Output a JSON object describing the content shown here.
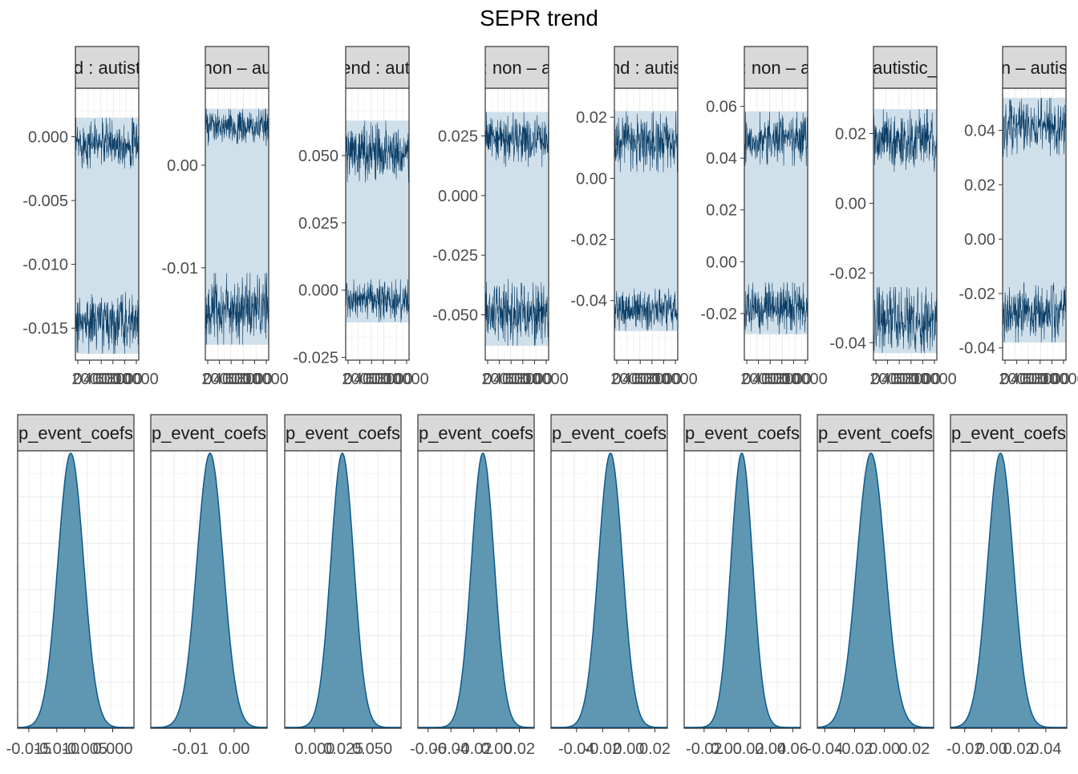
{
  "title": "SEPR trend",
  "colors": {
    "trace_line": "#0a3d66",
    "trace_band": "#d0e0eb",
    "density_fill": "#5f97b3",
    "density_line": "#0d5a8c",
    "strip_fill": "#d9d9d9",
    "grid": "#ebebeb",
    "axis_text": "#4d4d4d"
  },
  "chart_data": [
    {
      "type": "line",
      "role": "trace",
      "strip_label": "d : autist",
      "x_tick_labels": [
        "0",
        "2000",
        "4000",
        "6000",
        "8000",
        "10000"
      ],
      "xlim": [
        0,
        10000
      ],
      "y_ticks": [
        -0.015,
        -0.01,
        -0.005,
        0.0
      ],
      "y_tick_labels": [
        "-0.015",
        "-0.010",
        "-0.005",
        "0.000"
      ],
      "ylim": [
        -0.0175,
        0.0038
      ],
      "upper_band": [
        -0.0025,
        0.0015
      ],
      "lower_band": [
        -0.017,
        -0.012
      ]
    },
    {
      "type": "line",
      "role": "trace",
      "strip_label": "non – au",
      "x_tick_labels": [
        "0",
        "2000",
        "4000",
        "6000",
        "8000",
        "10000"
      ],
      "xlim": [
        0,
        10000
      ],
      "y_ticks": [
        -0.01,
        0.0
      ],
      "y_tick_labels": [
        "-0.01",
        "0.00"
      ],
      "ylim": [
        -0.019,
        0.0075
      ],
      "upper_band": [
        0.0018,
        0.0055
      ],
      "lower_band": [
        -0.0175,
        -0.0105
      ]
    },
    {
      "type": "line",
      "role": "trace",
      "strip_label": "end : auti",
      "x_tick_labels": [
        "0",
        "2000",
        "4000",
        "6000",
        "8000",
        "10000"
      ],
      "xlim": [
        0,
        10000
      ],
      "y_ticks": [
        -0.025,
        0.0,
        0.025,
        0.05
      ],
      "y_tick_labels": [
        "-0.025",
        "0.000",
        "0.025",
        "0.050"
      ],
      "ylim": [
        -0.026,
        0.075
      ],
      "upper_band": [
        0.04,
        0.063
      ],
      "lower_band": [
        -0.012,
        0.004
      ]
    },
    {
      "type": "line",
      "role": "trace",
      "strip_label": ": non – a",
      "x_tick_labels": [
        "0",
        "2000",
        "4000",
        "6000",
        "8000",
        "10000"
      ],
      "xlim": [
        0,
        10000
      ],
      "y_ticks": [
        -0.05,
        -0.025,
        0.0,
        0.025
      ],
      "y_tick_labels": [
        "-0.050",
        "-0.025",
        "0.000",
        "0.025"
      ],
      "ylim": [
        -0.069,
        0.045
      ],
      "upper_band": [
        0.012,
        0.035
      ],
      "lower_band": [
        -0.063,
        -0.035
      ]
    },
    {
      "type": "line",
      "role": "trace",
      "strip_label": "nd : autis",
      "x_tick_labels": [
        "0",
        "2000",
        "4000",
        "6000",
        "8000",
        "10000"
      ],
      "xlim": [
        0,
        10000
      ],
      "y_ticks": [
        -0.04,
        -0.02,
        0.0,
        0.02
      ],
      "y_tick_labels": [
        "-0.04",
        "-0.02",
        "0.00",
        "0.02"
      ],
      "ylim": [
        -0.0595,
        0.0295
      ],
      "upper_band": [
        0.002,
        0.022
      ],
      "lower_band": [
        -0.05,
        -0.036
      ]
    },
    {
      "type": "line",
      "role": "trace",
      "strip_label": ": non – a",
      "x_tick_labels": [
        "0",
        "2000",
        "4000",
        "6000",
        "8000",
        "10000"
      ],
      "xlim": [
        0,
        10000
      ],
      "y_ticks": [
        -0.02,
        0.0,
        0.02,
        0.04,
        0.06
      ],
      "y_tick_labels": [
        "-0.02",
        "0.00",
        "0.02",
        "0.04",
        "0.06"
      ],
      "ylim": [
        -0.038,
        0.067
      ],
      "upper_band": [
        0.037,
        0.058
      ],
      "lower_band": [
        -0.028,
        -0.008
      ]
    },
    {
      "type": "line",
      "role": "trace",
      "strip_label": "autistic_",
      "x_tick_labels": [
        "0",
        "2000",
        "4000",
        "6000",
        "8000",
        "10000"
      ],
      "xlim": [
        0,
        10000
      ],
      "y_ticks": [
        -0.04,
        -0.02,
        0.0,
        0.02
      ],
      "y_tick_labels": [
        "-0.04",
        "-0.02",
        "0.00",
        "0.02"
      ],
      "ylim": [
        -0.045,
        0.033
      ],
      "upper_band": [
        0.009,
        0.027
      ],
      "lower_band": [
        -0.043,
        -0.024
      ]
    },
    {
      "type": "line",
      "role": "trace",
      "strip_label": "n – autis",
      "x_tick_labels": [
        "0",
        "2000",
        "4000",
        "6000",
        "8000",
        "10000"
      ],
      "xlim": [
        0,
        10000
      ],
      "y_ticks": [
        -0.04,
        -0.02,
        0.0,
        0.02,
        0.04
      ],
      "y_tick_labels": [
        "-0.04",
        "-0.02",
        "0.00",
        "0.02",
        "0.04"
      ],
      "ylim": [
        -0.0445,
        0.0555
      ],
      "upper_band": [
        0.03,
        0.052
      ],
      "lower_band": [
        -0.038,
        -0.016
      ]
    },
    {
      "type": "area",
      "role": "density",
      "strip_label": "p_event_coefs",
      "x_ticks": [
        -0.015,
        -0.01,
        -0.005,
        0.0
      ],
      "x_tick_labels": [
        "-0.015",
        "-0.010",
        "-0.005",
        "0.000"
      ],
      "xlim": [
        -0.017,
        0.0038
      ],
      "mean": -0.0075,
      "sd": 0.0023
    },
    {
      "type": "area",
      "role": "density",
      "strip_label": "p_event_coefs",
      "x_ticks": [
        -0.01,
        0.0
      ],
      "x_tick_labels": [
        "-0.01",
        "0.00"
      ],
      "xlim": [
        -0.019,
        0.0075
      ],
      "mean": -0.0055,
      "sd": 0.003
    },
    {
      "type": "area",
      "role": "density",
      "strip_label": "p_event_coefs",
      "x_ticks": [
        0.0,
        0.025,
        0.05
      ],
      "x_tick_labels": [
        "0.000",
        "0.025",
        "0.050"
      ],
      "xlim": [
        -0.026,
        0.075
      ],
      "mean": 0.024,
      "sd": 0.01
    },
    {
      "type": "area",
      "role": "density",
      "strip_label": "p_event_coefs",
      "x_ticks": [
        -0.06,
        -0.04,
        -0.02,
        0.0,
        0.02
      ],
      "x_tick_labels": [
        "-0.06",
        "-0.04",
        "-0.02",
        "0.00",
        "0.02"
      ],
      "xlim": [
        -0.069,
        0.033
      ],
      "mean": -0.012,
      "sd": 0.01
    },
    {
      "type": "area",
      "role": "density",
      "strip_label": "p_event_coefs",
      "x_ticks": [
        -0.04,
        -0.02,
        0.0,
        0.02
      ],
      "x_tick_labels": [
        "-0.04",
        "-0.02",
        "0.00",
        "0.02"
      ],
      "xlim": [
        -0.0595,
        0.0295
      ],
      "mean": -0.014,
      "sd": 0.0092
    },
    {
      "type": "area",
      "role": "density",
      "strip_label": "p_event_coefs",
      "x_ticks": [
        -0.02,
        0.0,
        0.02,
        0.04,
        0.06
      ],
      "x_tick_labels": [
        "-0.02",
        "0.00",
        "0.02",
        "0.04",
        "0.06"
      ],
      "xlim": [
        -0.038,
        0.067
      ],
      "mean": 0.014,
      "sd": 0.0098
    },
    {
      "type": "area",
      "role": "density",
      "strip_label": "p_event_coefs",
      "x_ticks": [
        -0.04,
        -0.02,
        0.0,
        0.02
      ],
      "x_tick_labels": [
        "-0.04",
        "-0.02",
        "0.00",
        "0.02"
      ],
      "xlim": [
        -0.045,
        0.033
      ],
      "mean": -0.009,
      "sd": 0.0095
    },
    {
      "type": "area",
      "role": "density",
      "strip_label": "p_event_coefs",
      "x_ticks": [
        -0.02,
        0.0,
        0.02,
        0.04
      ],
      "x_tick_labels": [
        "-0.02",
        "0.00",
        "0.02",
        "0.04"
      ],
      "xlim": [
        -0.0305,
        0.0555
      ],
      "mean": 0.0065,
      "sd": 0.0095
    }
  ]
}
